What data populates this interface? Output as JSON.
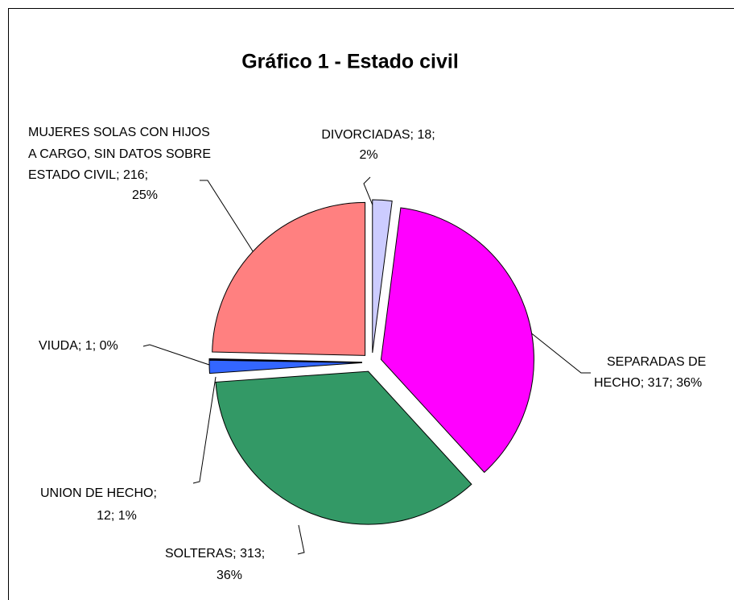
{
  "chart_data": {
    "type": "pie",
    "title": "Gráfico 1 - Estado civil",
    "values": [
      18,
      317,
      313,
      12,
      1,
      216
    ],
    "value_labels": [
      [
        "DIVORCIADAS; 18;",
        "2%"
      ],
      [
        "SEPARADAS DE",
        "HECHO; 317; 36%"
      ],
      [
        "SOLTERAS; 313;",
        "36%"
      ],
      [
        "UNION DE HECHO;",
        "12; 1%"
      ],
      [
        "VIUDA; 1; 0%"
      ],
      [
        "MUJERES SOLAS CON HIJOS",
        "A CARGO, SIN DATOS SOBRE",
        "ESTADO CIVIL; 216;",
        "25%"
      ]
    ],
    "colors": [
      "#ccccff",
      "#ff00ff",
      "#339966",
      "#3366ff",
      "#000080",
      "#ff8080"
    ]
  }
}
